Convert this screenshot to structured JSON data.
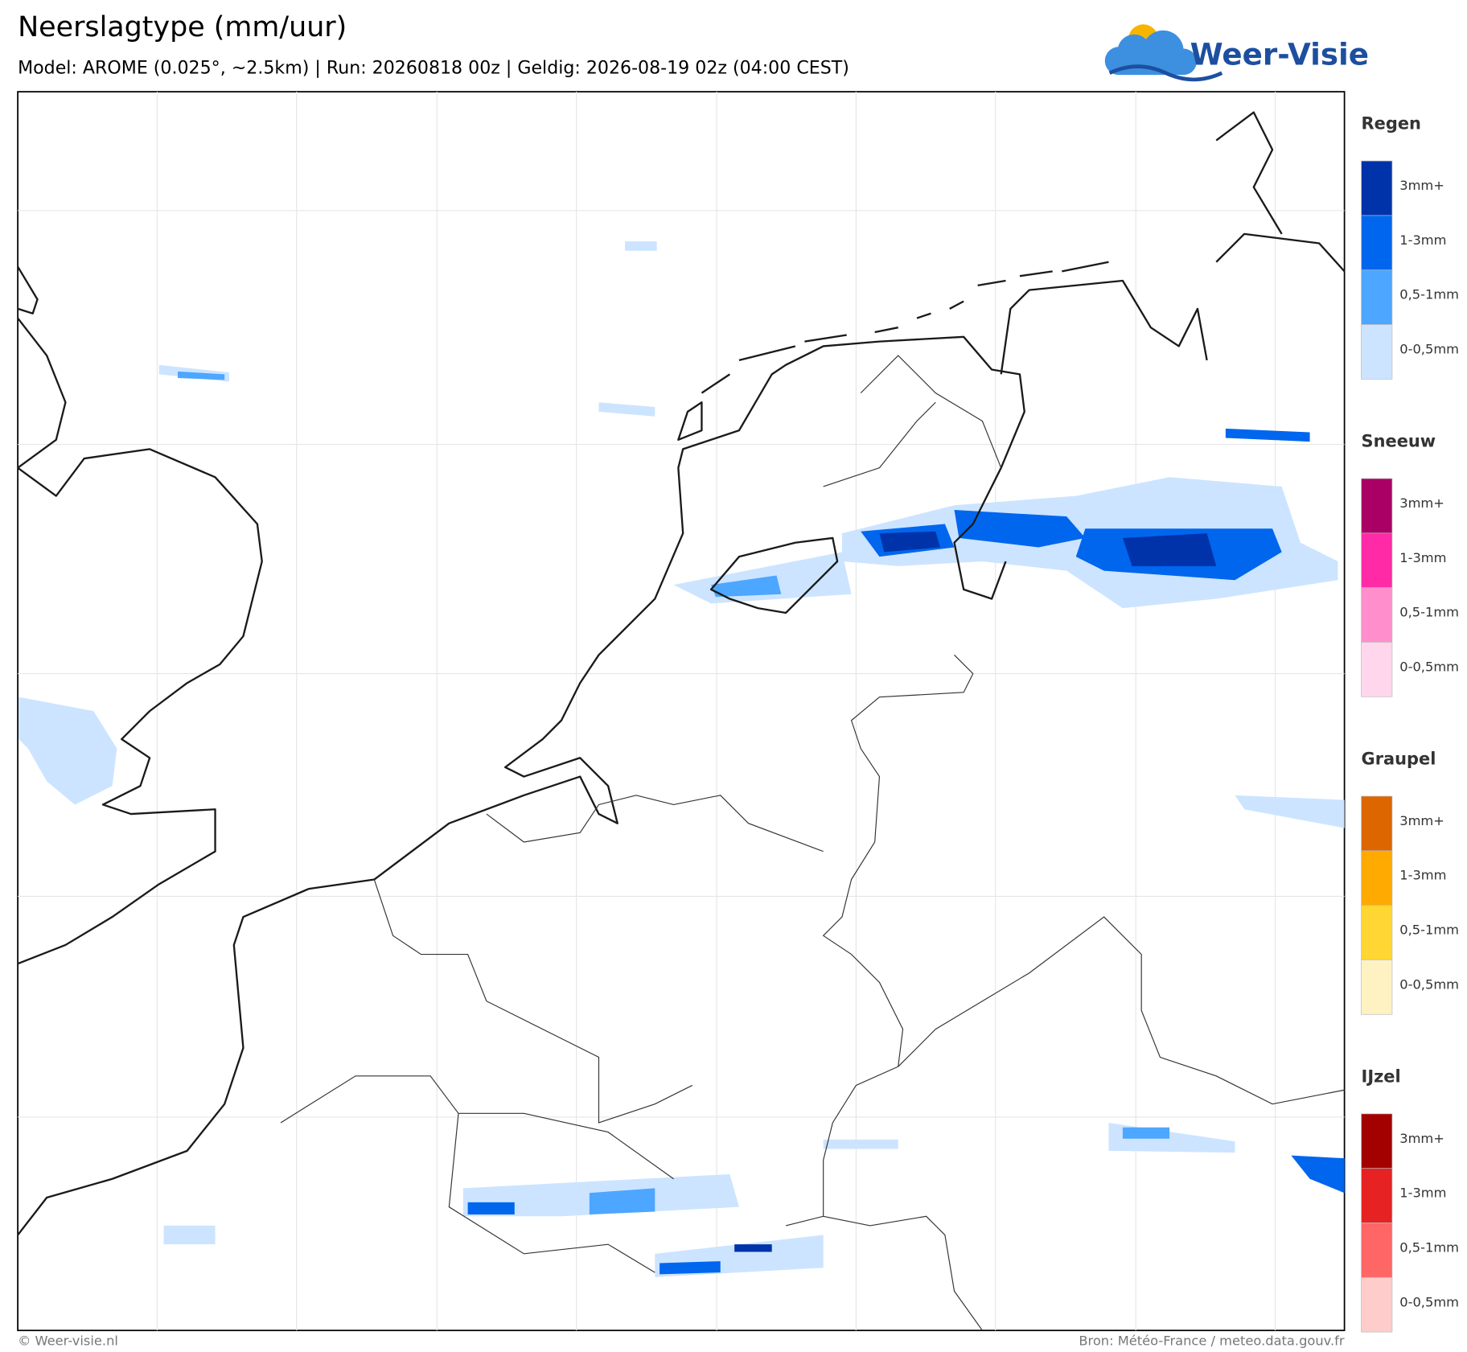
{
  "header": {
    "title": "Neerslagtype (mm/uur)",
    "subtitle": "Model: AROME (0.025°, ~2.5km)  |  Run: 20260818 00z  |  Geldig: 2026-08-19 02z (04:00 CEST)"
  },
  "logo": {
    "text": "Weer-Visie"
  },
  "legend": {
    "groups": [
      {
        "title": "Regen",
        "items": [
          "3mm+",
          "1-3mm",
          "0,5-1mm",
          "0-0,5mm"
        ],
        "colors": [
          "#0033aa",
          "#0066ee",
          "#4da6ff",
          "#cce4ff"
        ]
      },
      {
        "title": "Sneeuw",
        "items": [
          "3mm+",
          "1-3mm",
          "0,5-1mm",
          "0-0,5mm"
        ],
        "colors": [
          "#aa0066",
          "#ff2aa6",
          "#ff8fcc",
          "#ffd6ec"
        ]
      },
      {
        "title": "Graupel",
        "items": [
          "3mm+",
          "1-3mm",
          "0,5-1mm",
          "0-0,5mm"
        ],
        "colors": [
          "#dd6600",
          "#ffaa00",
          "#ffd633",
          "#fff2c2"
        ]
      },
      {
        "title": "IJzel",
        "items": [
          "3mm+",
          "1-3mm",
          "0,5-1mm",
          "0-0,5mm"
        ],
        "colors": [
          "#a30000",
          "#e62222",
          "#ff6666",
          "#ffcccc"
        ]
      }
    ]
  },
  "footer": {
    "left": "© Weer-visie.nl",
    "right": "Bron: Météo-France / meteo.data.gouv.fr"
  }
}
